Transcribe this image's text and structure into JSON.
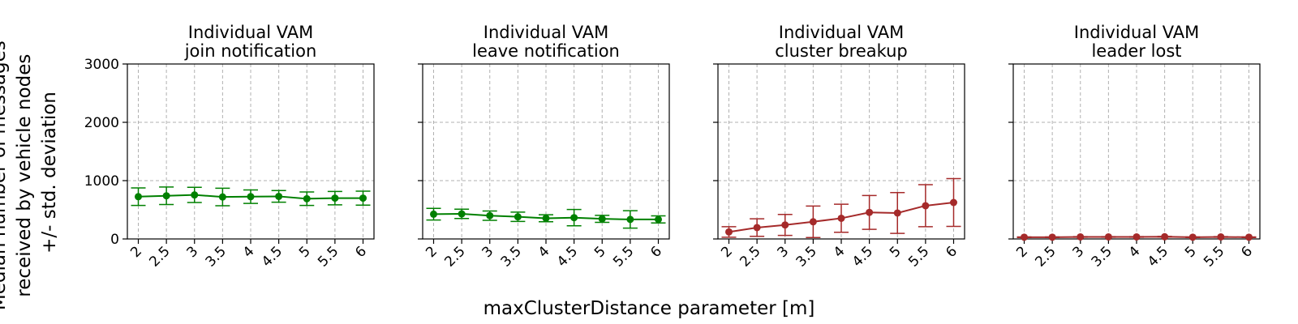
{
  "figure": {
    "ylabel_lines": [
      "Median number of messages",
      "received by vehicle nodes",
      "+/- std. deviation"
    ],
    "xlabel": "maxClusterDistance parameter [m]"
  },
  "chart_data": [
    {
      "type": "line",
      "title_lines": [
        "Individual VAM",
        "join notification"
      ],
      "categories": [
        "2",
        "2.5",
        "3",
        "3.5",
        "4",
        "4.5",
        "5",
        "5.5",
        "6"
      ],
      "series": [
        {
          "values": [
            725,
            740,
            755,
            720,
            725,
            730,
            690,
            700,
            700
          ],
          "errors": [
            150,
            150,
            130,
            150,
            115,
            100,
            115,
            115,
            120
          ],
          "color": "#008000"
        }
      ],
      "ylim": [
        0,
        3000
      ],
      "yticks": [
        0,
        1000,
        2000,
        3000
      ],
      "show_ytick_labels": true,
      "grid": true
    },
    {
      "type": "line",
      "title_lines": [
        "Individual VAM",
        "leave notification"
      ],
      "categories": [
        "2",
        "2.5",
        "3",
        "3.5",
        "4",
        "4.5",
        "5",
        "5.5",
        "6"
      ],
      "series": [
        {
          "values": [
            425,
            430,
            400,
            380,
            355,
            365,
            345,
            335,
            335
          ],
          "errors": [
            100,
            80,
            80,
            80,
            60,
            140,
            60,
            150,
            60
          ],
          "color": "#008000"
        }
      ],
      "ylim": [
        0,
        3000
      ],
      "yticks": [
        0,
        1000,
        2000,
        3000
      ],
      "show_ytick_labels": false,
      "grid": true
    },
    {
      "type": "line",
      "title_lines": [
        "Individual VAM",
        "cluster breakup"
      ],
      "categories": [
        "2",
        "2.5",
        "3",
        "3.5",
        "4",
        "4.5",
        "5",
        "5.5",
        "6"
      ],
      "series": [
        {
          "values": [
            120,
            195,
            240,
            295,
            355,
            455,
            445,
            570,
            625
          ],
          "errors": [
            90,
            150,
            180,
            270,
            240,
            290,
            350,
            360,
            410
          ],
          "color": "#a52a2a"
        }
      ],
      "ylim": [
        0,
        3000
      ],
      "yticks": [
        0,
        1000,
        2000,
        3000
      ],
      "show_ytick_labels": false,
      "grid": true
    },
    {
      "type": "line",
      "title_lines": [
        "Individual VAM",
        "leader lost"
      ],
      "categories": [
        "2",
        "2.5",
        "3",
        "3.5",
        "4",
        "4.5",
        "5",
        "5.5",
        "6"
      ],
      "series": [
        {
          "values": [
            30,
            30,
            35,
            35,
            35,
            38,
            30,
            35,
            30
          ],
          "errors": [
            5,
            5,
            5,
            5,
            5,
            5,
            5,
            5,
            5
          ],
          "color": "#a52a2a"
        }
      ],
      "ylim": [
        0,
        3000
      ],
      "yticks": [
        0,
        1000,
        2000,
        3000
      ],
      "show_ytick_labels": false,
      "grid": true
    }
  ]
}
